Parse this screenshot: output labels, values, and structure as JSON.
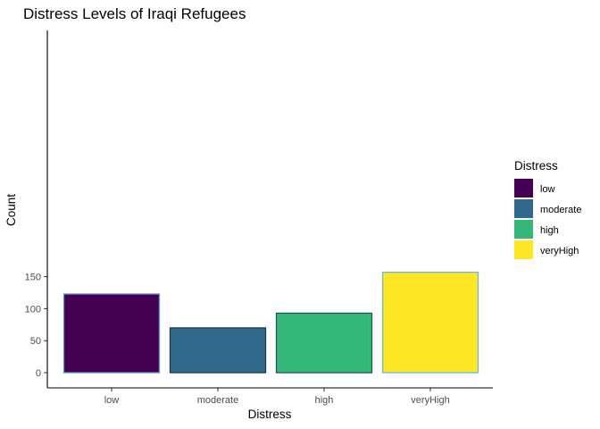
{
  "chart_data": {
    "type": "bar",
    "title": "Distress Levels of Iraqi Refugees",
    "xlabel": "Distress",
    "ylabel": "Count",
    "categories": [
      "low",
      "moderate",
      "high",
      "veryHigh"
    ],
    "values": [
      123,
      70,
      93,
      157
    ],
    "ylim": [
      0,
      165
    ],
    "yticks": [
      0,
      50,
      100,
      150
    ],
    "grid": false,
    "legend": {
      "title": "Distress",
      "position": "right",
      "entries": [
        "low",
        "moderate",
        "high",
        "veryHigh"
      ]
    },
    "colors": [
      "#440154",
      "#31688E",
      "#35B779",
      "#FDE725"
    ],
    "outline_colors": [
      "#5B9BD5",
      "#1F3A4D",
      "#1F5A46",
      "#6CB7E6"
    ]
  }
}
